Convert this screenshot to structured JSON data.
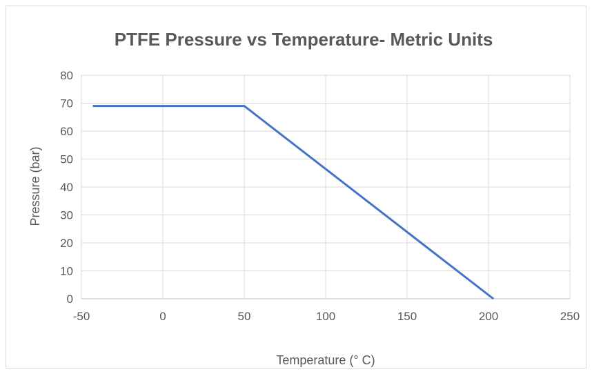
{
  "chart_data": {
    "type": "line",
    "title": "PTFE Pressure vs Temperature- Metric Units",
    "xlabel": "Temperature (° C)",
    "ylabel": "Pressure (bar)",
    "xlim": [
      -50,
      250
    ],
    "ylim": [
      0,
      80
    ],
    "xticks": [
      -50,
      0,
      50,
      100,
      150,
      200,
      250
    ],
    "yticks": [
      0,
      10,
      20,
      30,
      40,
      50,
      60,
      70,
      80
    ],
    "grid": true,
    "legend": "none",
    "series": [
      {
        "color": "#4472c4",
        "x": [
          -43,
          50,
          203
        ],
        "y": [
          69,
          69,
          0
        ]
      }
    ]
  }
}
